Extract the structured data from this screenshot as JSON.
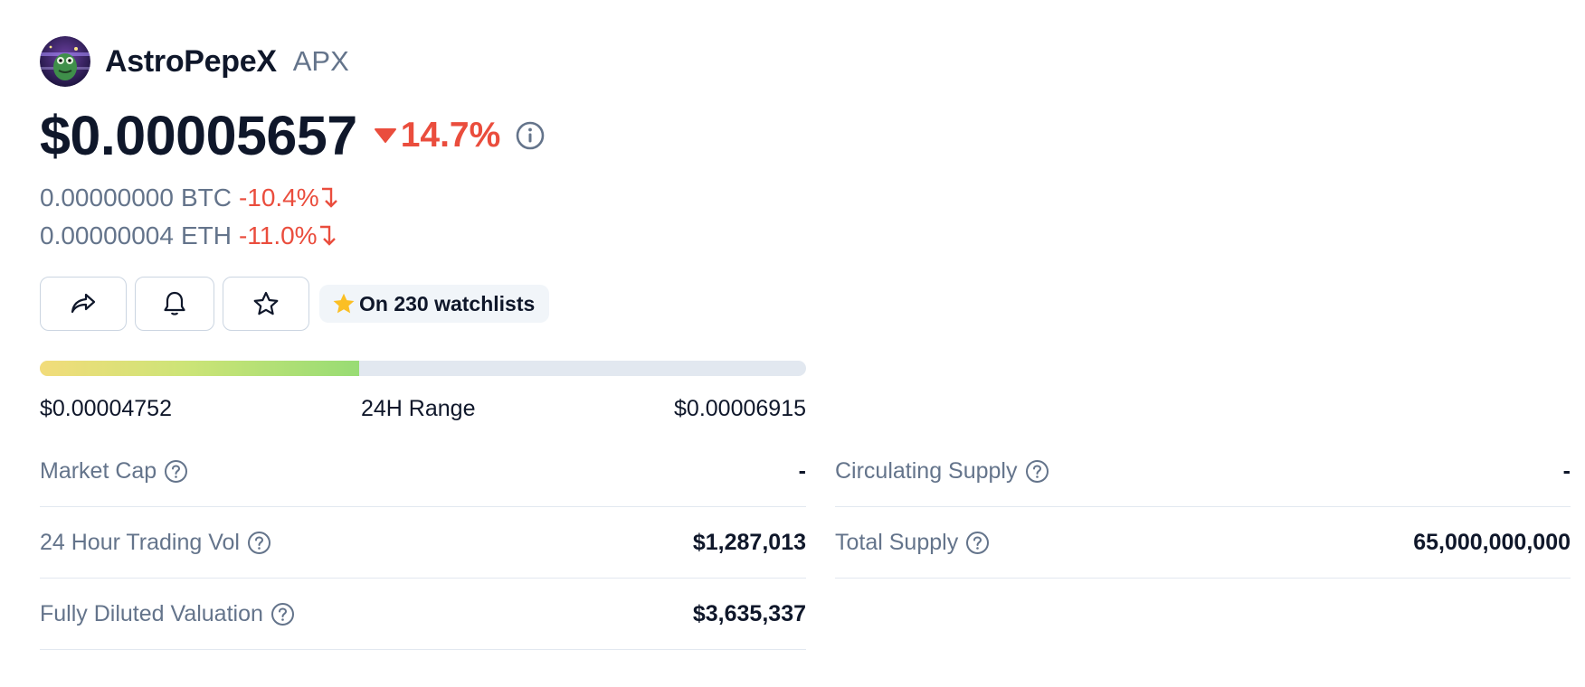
{
  "coin": {
    "name": "AstroPepeX",
    "symbol": "APX",
    "logo_icon": "astropepex-logo-icon"
  },
  "price": {
    "value": "$0.00005657",
    "change": "14.7%",
    "change_direction": "down",
    "change_color": "#ea4d3d",
    "info_icon": "info-icon"
  },
  "sub_prices": [
    {
      "amount": "0.00000000",
      "unit": "BTC",
      "change": "-10.4%"
    },
    {
      "amount": "0.00000004",
      "unit": "ETH",
      "change": "-11.0%"
    }
  ],
  "actions": {
    "share_icon": "share-icon",
    "alert_icon": "bell-icon",
    "watchlist_icon": "star-outline-icon",
    "watchlists_label": "On 230 watchlists"
  },
  "range": {
    "low": "$0.00004752",
    "label": "24H Range",
    "high": "$0.00006915",
    "fill_fraction": 0.417
  },
  "stats_left": [
    {
      "label": "Market Cap",
      "value": "-"
    },
    {
      "label": "24 Hour Trading Vol",
      "value": "$1,287,013"
    },
    {
      "label": "Fully Diluted Valuation",
      "value": "$3,635,337"
    }
  ],
  "stats_right": [
    {
      "label": "Circulating Supply",
      "value": "-"
    },
    {
      "label": "Total Supply",
      "value": "65,000,000,000"
    }
  ]
}
